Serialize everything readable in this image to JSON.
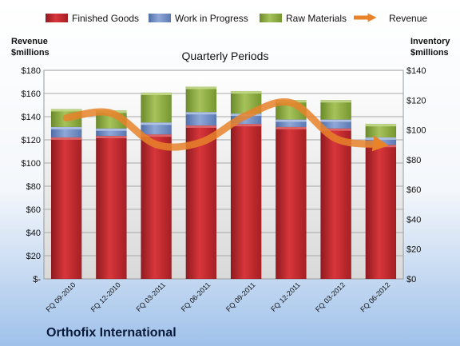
{
  "chart_data": {
    "type": "bar",
    "stacked": true,
    "title": "Quarterly Periods",
    "company": "Orthofix International",
    "y_left_label": [
      "Revenue",
      "$millions"
    ],
    "y_right_label": [
      "Inventory",
      "$millions"
    ],
    "y_left_ticks": [
      "$-",
      "$20",
      "$40",
      "$60",
      "$80",
      "$100",
      "$120",
      "$140",
      "$160",
      "$180"
    ],
    "y_right_ticks": [
      "$0",
      "$20",
      "$40",
      "$60",
      "$80",
      "$100",
      "$120",
      "$140"
    ],
    "y_right_range": [
      0,
      140
    ],
    "y_left_range": [
      0,
      180
    ],
    "categories": [
      "FQ 09-2010",
      "FQ 12-2010",
      "FQ 03-2011",
      "FQ 06-2011",
      "FQ 09-2011",
      "FQ 12-2011",
      "FQ 03-2012",
      "FQ 06-2012"
    ],
    "series": [
      {
        "name": "Finished Goods",
        "axis": "right",
        "color": "#c0272d",
        "values": [
          95,
          96,
          97,
          103,
          104,
          102,
          101,
          90
        ]
      },
      {
        "name": "Work in Progress",
        "axis": "right",
        "color": "#6e8cc6",
        "values": [
          7,
          5,
          8,
          9,
          7,
          5,
          6,
          5
        ]
      },
      {
        "name": "Raw Materials",
        "axis": "right",
        "color": "#8aaa3e",
        "values": [
          12,
          12,
          20,
          17,
          15,
          13,
          13,
          9
        ]
      }
    ],
    "line": {
      "name": "Revenue",
      "axis": "left",
      "color": "#e8832a",
      "values": [
        139,
        143,
        116,
        118,
        141,
        152,
        121,
        116
      ]
    },
    "legend_position": "top",
    "grid": true
  }
}
